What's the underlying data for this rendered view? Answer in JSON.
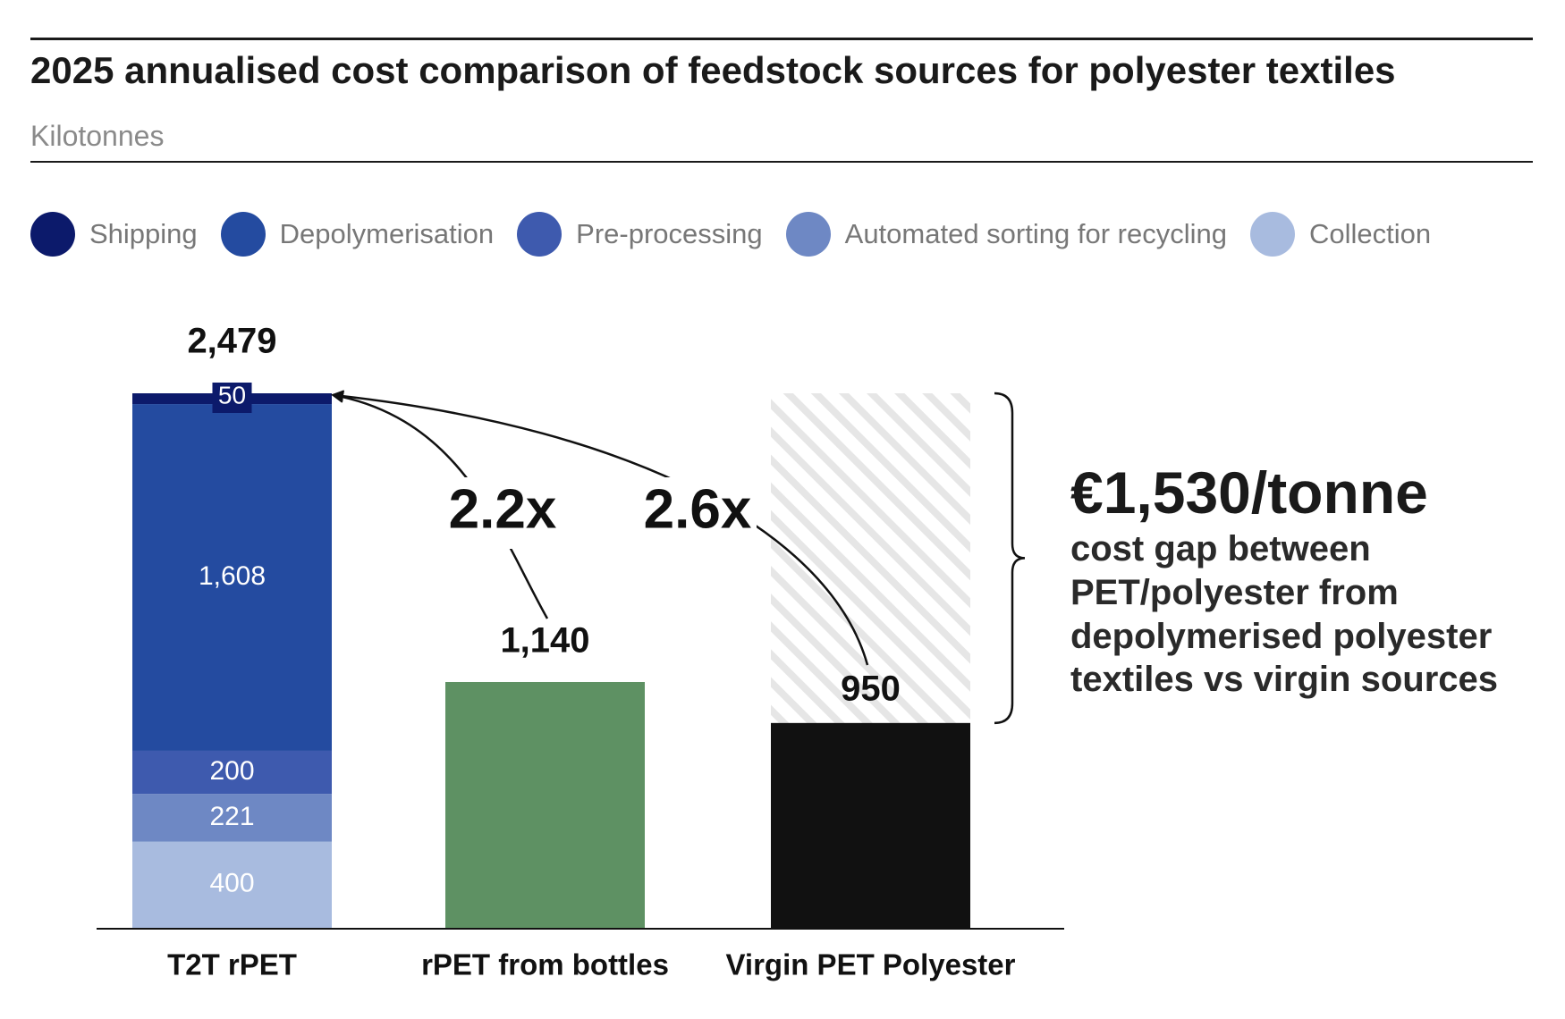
{
  "header": {
    "title": "2025 annualised cost comparison of feedstock sources for polyester textiles",
    "subtitle": "Kilotonnes"
  },
  "legend": [
    {
      "label": "Shipping",
      "color": "#0c1a6b"
    },
    {
      "label": "Depolymerisation",
      "color": "#244ba0"
    },
    {
      "label": "Pre-processing",
      "color": "#3e5aae"
    },
    {
      "label": "Automated sorting for recycling",
      "color": "#6e88c4"
    },
    {
      "label": "Collection",
      "color": "#a8bbdf"
    }
  ],
  "callout": {
    "headline": "€1,530/tonne",
    "text": "cost gap between PET/polyester from depolymerised polyester textiles vs virgin sources"
  },
  "chart_data": {
    "type": "bar",
    "stacked": true,
    "categories": [
      "T2T rPET",
      "rPET from bottles",
      "Virgin PET Polyester"
    ],
    "series": [
      {
        "name": "Collection",
        "values": [
          400,
          null,
          null
        ],
        "color": "#a8bbdf"
      },
      {
        "name": "Automated sorting for recycling",
        "values": [
          221,
          null,
          null
        ],
        "color": "#6e88c4"
      },
      {
        "name": "Pre-processing",
        "values": [
          200,
          null,
          null
        ],
        "color": "#3e5aae"
      },
      {
        "name": "Depolymerisation",
        "values": [
          1608,
          null,
          null
        ],
        "color": "#244ba0"
      },
      {
        "name": "Shipping",
        "values": [
          50,
          null,
          null
        ],
        "color": "#0c1a6b"
      },
      {
        "values": [
          null,
          1140,
          950
        ]
      }
    ],
    "bar_colors": [
      "#244ba0",
      "#5e9163",
      "#111111"
    ],
    "totals": [
      "2,479",
      "1,140",
      "950"
    ],
    "segment_labels": [
      "400",
      "221",
      "200",
      "1,608",
      "50"
    ],
    "gap": {
      "category": "Virgin PET Polyester",
      "top": 2479,
      "hatched": true
    },
    "multipliers": [
      {
        "label": "2.2x",
        "from": "rPET from bottles"
      },
      {
        "label": "2.6x",
        "from": "Virgin PET Polyester"
      }
    ],
    "ylim": [
      0,
      2500
    ],
    "xlabel": "",
    "ylabel": ""
  }
}
